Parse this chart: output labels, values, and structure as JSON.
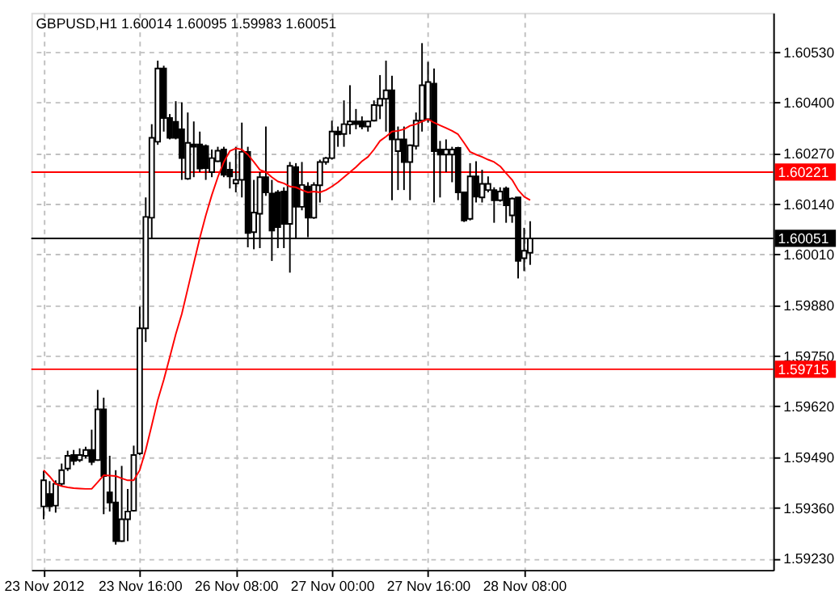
{
  "chart_data": {
    "type": "candlestick",
    "title": "GBPUSD,H1 1.60014 1.60095 1.59983 1.60051",
    "categories": [
      "23 Nov 2012",
      null,
      null,
      null,
      null,
      null,
      null,
      null,
      null,
      null,
      null,
      null,
      null,
      null,
      null,
      null,
      "23 Nov 16:00",
      null,
      null,
      null,
      null,
      null,
      null,
      null,
      null,
      null,
      null,
      null,
      null,
      null,
      null,
      null,
      "26 Nov 08:00",
      null,
      null,
      null,
      null,
      null,
      null,
      null,
      null,
      null,
      null,
      null,
      null,
      null,
      null,
      null,
      "27 Nov 00:00",
      null,
      null,
      null,
      null,
      null,
      null,
      null,
      null,
      null,
      null,
      null,
      null,
      null,
      null,
      null,
      "27 Nov 16:00",
      null,
      null,
      null,
      null,
      null,
      null,
      null,
      null,
      null,
      null,
      null,
      null,
      null,
      null,
      null,
      "28 Nov 08:00",
      null
    ],
    "ohlc": [
      [
        1.59363,
        1.59454,
        1.5933,
        1.5943
      ],
      [
        1.59395,
        1.59428,
        1.5935,
        1.59363
      ],
      [
        1.59365,
        1.5943,
        1.59347,
        1.59421
      ],
      [
        1.59421,
        1.59473,
        1.59415,
        1.59456
      ],
      [
        1.5946,
        1.59506,
        1.59454,
        1.59493
      ],
      [
        1.59495,
        1.59508,
        1.59469,
        1.5948
      ],
      [
        1.59482,
        1.59512,
        1.59477,
        1.59495
      ],
      [
        1.59493,
        1.59516,
        1.59486,
        1.59508
      ],
      [
        1.59508,
        1.5956,
        1.59469,
        1.59477
      ],
      [
        1.59482,
        1.59662,
        1.5948,
        1.59612
      ],
      [
        1.59612,
        1.59642,
        1.59343,
        1.59441
      ],
      [
        1.59399,
        1.59493,
        1.5935,
        1.59373
      ],
      [
        1.59373,
        1.59456,
        1.59265,
        1.59274
      ],
      [
        1.59274,
        1.59467,
        1.59272,
        1.5933
      ],
      [
        1.5933,
        1.59408,
        1.59274,
        1.5935
      ],
      [
        1.59352,
        1.59519,
        1.5935,
        1.59495
      ],
      [
        1.59499,
        1.59876,
        1.59495,
        1.5982
      ],
      [
        1.5982,
        1.60156,
        1.59785,
        1.60106
      ],
      [
        1.60104,
        1.60344,
        1.60052,
        1.60309
      ],
      [
        1.60299,
        1.60507,
        1.60291,
        1.60487
      ],
      [
        1.60487,
        1.60494,
        1.60325,
        1.6036
      ],
      [
        1.6036,
        1.6037,
        1.60305,
        1.60309
      ],
      [
        1.6035,
        1.60403,
        1.60305,
        1.60309
      ],
      [
        1.60331,
        1.604,
        1.60201,
        1.60257
      ],
      [
        1.60204,
        1.60374,
        1.60201,
        1.60296
      ],
      [
        1.60292,
        1.60351,
        1.60208,
        1.60286
      ],
      [
        1.60292,
        1.60325,
        1.60221,
        1.6023
      ],
      [
        1.60288,
        1.60292,
        1.60201,
        1.60231
      ],
      [
        1.60221,
        1.60279,
        1.60208,
        1.60257
      ],
      [
        1.60249,
        1.60286,
        1.60247,
        1.60276
      ],
      [
        1.60279,
        1.60286,
        1.60208,
        1.60214
      ],
      [
        1.60227,
        1.60247,
        1.60179,
        1.6021
      ],
      [
        1.60192,
        1.60286,
        1.60169,
        1.60201
      ],
      [
        1.60201,
        1.60348,
        1.60156,
        1.60273
      ],
      [
        1.60273,
        1.60286,
        1.60028,
        1.60065
      ],
      [
        1.60067,
        1.60201,
        1.60023,
        1.60117
      ],
      [
        1.60114,
        1.60221,
        1.60026,
        1.60208
      ],
      [
        1.60208,
        1.60338,
        1.6016,
        1.60169
      ],
      [
        1.60166,
        1.60201,
        1.59993,
        1.60071
      ],
      [
        1.60169,
        1.60175,
        1.60026,
        1.6008
      ],
      [
        1.60171,
        1.60182,
        1.60026,
        1.60088
      ],
      [
        1.60088,
        1.60247,
        1.59963,
        1.60237
      ],
      [
        1.60234,
        1.60244,
        1.60052,
        1.60132
      ],
      [
        1.60132,
        1.60247,
        1.60123,
        1.60188
      ],
      [
        1.60184,
        1.60195,
        1.60054,
        1.60104
      ],
      [
        1.60104,
        1.60195,
        1.60101,
        1.60188
      ],
      [
        1.60187,
        1.60253,
        1.60143,
        1.60247
      ],
      [
        1.60247,
        1.6026,
        1.6024,
        1.60257
      ],
      [
        1.60257,
        1.60353,
        1.60253,
        1.60325
      ],
      [
        1.60325,
        1.60338,
        1.60286,
        1.60318
      ],
      [
        1.60319,
        1.60405,
        1.60286,
        1.60344
      ],
      [
        1.60343,
        1.60444,
        1.60318,
        1.60351
      ],
      [
        1.60351,
        1.60383,
        1.60331,
        1.60344
      ],
      [
        1.60351,
        1.60364,
        1.60331,
        1.60338
      ],
      [
        1.60338,
        1.60353,
        1.60325,
        1.60351
      ],
      [
        1.60353,
        1.60405,
        1.60351,
        1.60393
      ],
      [
        1.60392,
        1.6047,
        1.60357,
        1.60409
      ],
      [
        1.60409,
        1.60507,
        1.60325,
        1.60431
      ],
      [
        1.60431,
        1.60468,
        1.60149,
        1.60305
      ],
      [
        1.60275,
        1.60338,
        1.60175,
        1.60305
      ],
      [
        1.60305,
        1.60338,
        1.60175,
        1.60247
      ],
      [
        1.60247,
        1.60292,
        1.60149,
        1.6029
      ],
      [
        1.60288,
        1.60374,
        1.60279,
        1.60353
      ],
      [
        1.60353,
        1.60552,
        1.60325,
        1.60444
      ],
      [
        1.60357,
        1.60504,
        1.60348,
        1.60452
      ],
      [
        1.60448,
        1.60487,
        1.60143,
        1.60275
      ],
      [
        1.60279,
        1.60301,
        1.60156,
        1.60266
      ],
      [
        1.60266,
        1.60305,
        1.60221,
        1.60279
      ],
      [
        1.60266,
        1.60286,
        1.60195,
        1.60279
      ],
      [
        1.60283,
        1.60286,
        1.60149,
        1.60169
      ],
      [
        1.60169,
        1.60171,
        1.60093,
        1.60097
      ],
      [
        1.60101,
        1.60244,
        1.60097,
        1.6021
      ],
      [
        1.6021,
        1.60249,
        1.60143,
        1.60158
      ],
      [
        1.60156,
        1.60227,
        1.60143,
        1.60191
      ],
      [
        1.60175,
        1.6021,
        1.60169,
        1.60191
      ],
      [
        1.60175,
        1.60182,
        1.60091,
        1.60149
      ],
      [
        1.60149,
        1.60182,
        1.60145,
        1.60171
      ],
      [
        1.60179,
        1.60184,
        1.60091,
        1.60136
      ],
      [
        1.6011,
        1.60156,
        1.60091,
        1.60153
      ],
      [
        1.60156,
        1.60156,
        1.59948,
        1.59993
      ],
      [
        1.6,
        1.60078,
        1.59967,
        1.60019
      ],
      [
        1.60014,
        1.60095,
        1.59983,
        1.60051
      ]
    ],
    "series": [
      {
        "type": "line",
        "color": "#ff0000",
        "values": [
          1.59456,
          1.5944,
          1.59421,
          1.59415,
          1.59412,
          1.5941,
          1.59409,
          1.59408,
          1.59408,
          1.59425,
          1.59443,
          1.59442,
          1.59441,
          1.59435,
          1.5943,
          1.5943,
          1.59456,
          1.59508,
          1.59571,
          1.59636,
          1.59688,
          1.59746,
          1.59805,
          1.59857,
          1.59922,
          1.59987,
          1.60052,
          1.6011,
          1.60162,
          1.60208,
          1.60247,
          1.60275,
          1.60282,
          1.60279,
          1.60266,
          1.60247,
          1.60227,
          1.60221,
          1.60208,
          1.60197,
          1.60192,
          1.60184,
          1.60182,
          1.60175,
          1.60169,
          1.60171,
          1.60169,
          1.60175,
          1.60184,
          1.60195,
          1.60208,
          1.60221,
          1.60234,
          1.60249,
          1.6026,
          1.60279,
          1.60301,
          1.60312,
          1.60325,
          1.60327,
          1.60331,
          1.6034,
          1.60344,
          1.60351,
          1.60357,
          1.60348,
          1.60341,
          1.60334,
          1.60327,
          1.60318,
          1.60296,
          1.60273,
          1.60266,
          1.6026,
          1.60253,
          1.60247,
          1.60236,
          1.60218,
          1.60201,
          1.60175,
          1.60158,
          1.60149
        ]
      }
    ],
    "ylim": [
      1.592,
      1.6063
    ],
    "yticks": [
      {
        "value": 1.5923,
        "label": "1.59230"
      },
      {
        "value": 1.5936,
        "label": "1.59360"
      },
      {
        "value": 1.5949,
        "label": "1.59490"
      },
      {
        "value": 1.5962,
        "label": "1.59620"
      },
      {
        "value": 1.5975,
        "label": "1.59750"
      },
      {
        "value": 1.5988,
        "label": "1.59880"
      },
      {
        "value": 1.6001,
        "label": "1.60010"
      },
      {
        "value": 1.6014,
        "label": "1.60140"
      },
      {
        "value": 1.6027,
        "label": "1.60270"
      },
      {
        "value": 1.604,
        "label": "1.60400"
      },
      {
        "value": 1.6053,
        "label": "1.60530"
      }
    ],
    "ref_lines": [
      {
        "axis": "y",
        "value": 1.60221,
        "label": "1.60221",
        "color": "#ff0000"
      },
      {
        "axis": "y",
        "value": 1.59715,
        "label": "1.59715",
        "color": "#ff0000"
      },
      {
        "axis": "y",
        "value": 1.60051,
        "label": "1.60051",
        "color": "#000000"
      }
    ],
    "grid": true
  }
}
